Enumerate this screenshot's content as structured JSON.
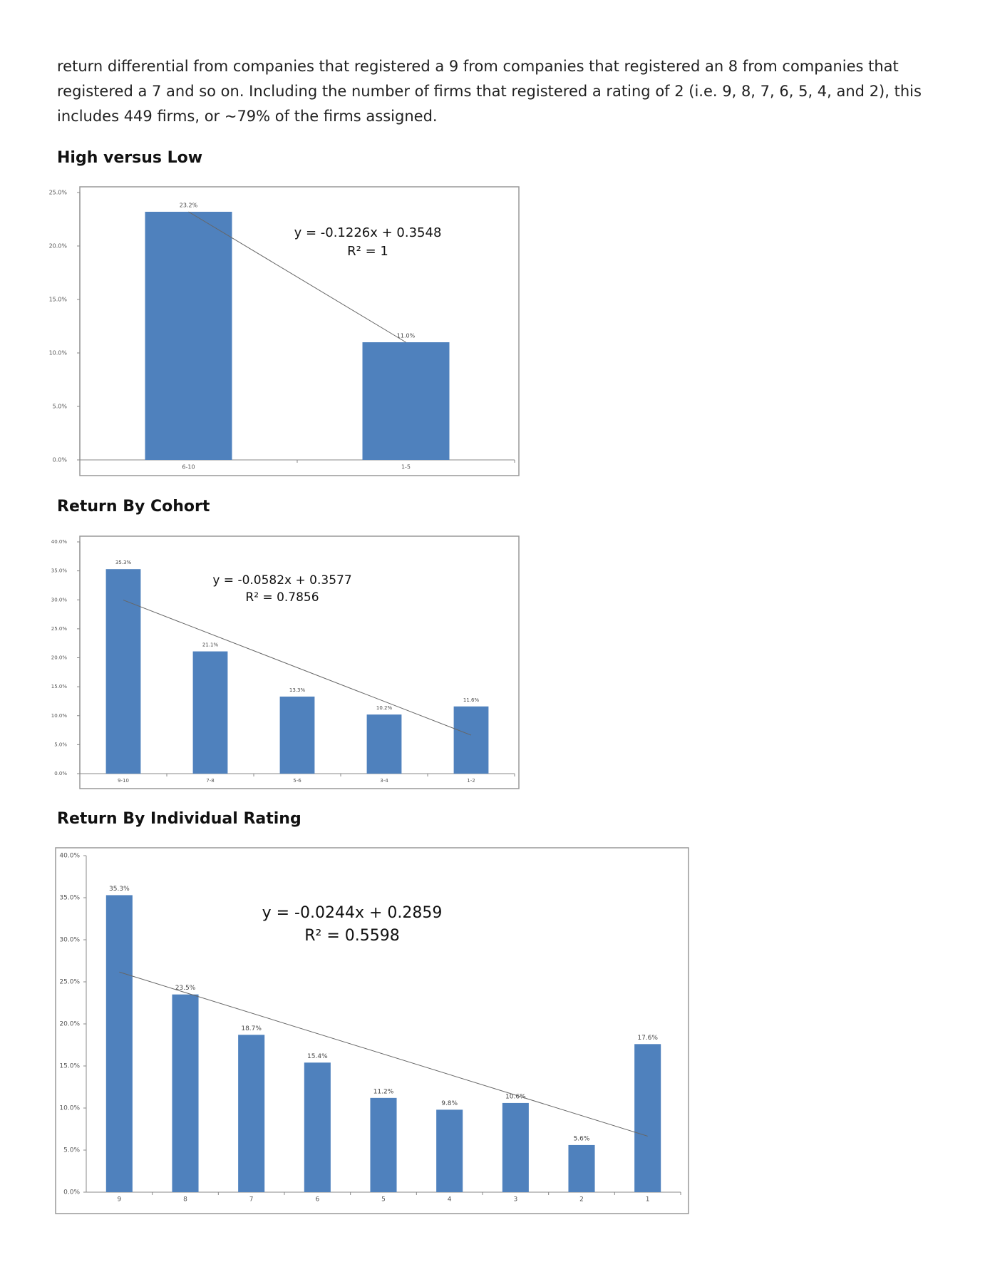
{
  "paragraph": [
    "return differential from companies that registered a 9 from companies that registered an 8 from companies that",
    "registered a 7 and so on. Including the number of firms that registered a rating of 2 (i.e. 9, 8, 7, 6, 5, 4, and 2), this",
    "includes 449 firms, or ~79% of the firms assigned."
  ],
  "chart_data": [
    {
      "type": "bar",
      "title": "High versus Low",
      "categories": [
        "6-10",
        "1-5"
      ],
      "values": [
        23.2,
        11.0
      ],
      "value_labels": [
        "23.2%",
        "11.0%"
      ],
      "color": "#4f81bd",
      "ylim": [
        0,
        25
      ],
      "yticks": [
        {
          "value": 0,
          "label": "0.0%"
        },
        {
          "value": 5,
          "label": "5.0%"
        },
        {
          "value": 10,
          "label": "10.0%"
        },
        {
          "value": 15,
          "label": "15.0%"
        },
        {
          "value": 20,
          "label": "20.0%"
        },
        {
          "value": 25,
          "label": "25.0%"
        }
      ],
      "trendline": "linear",
      "annotations": [
        "y = -0.1226x + 0.3548",
        "R² = 1"
      ]
    },
    {
      "type": "bar",
      "title": "Return By Cohort",
      "categories": [
        "9-10",
        "7-8",
        "5-6",
        "3-4",
        "1-2"
      ],
      "values": [
        35.3,
        21.1,
        13.3,
        10.2,
        11.6
      ],
      "value_labels": [
        "35.3%",
        "21.1%",
        "13.3%",
        "10.2%",
        "11.6%"
      ],
      "color": "#4f81bd",
      "ylim": [
        0,
        40
      ],
      "yticks": [
        {
          "value": 0,
          "label": "0.0%"
        },
        {
          "value": 5,
          "label": "5.0%"
        },
        {
          "value": 10,
          "label": "10.0%"
        },
        {
          "value": 15,
          "label": "15.0%"
        },
        {
          "value": 20,
          "label": "20.0%"
        },
        {
          "value": 25,
          "label": "25.0%"
        },
        {
          "value": 30,
          "label": "30.0%"
        },
        {
          "value": 35,
          "label": "35.0%"
        },
        {
          "value": 40,
          "label": "40.0%"
        }
      ],
      "trendline": "linear",
      "annotations": [
        "y = -0.0582x + 0.3577",
        "R² = 0.7856"
      ]
    },
    {
      "type": "bar",
      "title": "Return By Individual Rating",
      "categories": [
        "9",
        "8",
        "7",
        "6",
        "5",
        "4",
        "3",
        "2",
        "1"
      ],
      "values": [
        35.3,
        23.5,
        18.7,
        15.4,
        11.2,
        9.8,
        10.6,
        5.6,
        17.6
      ],
      "value_labels": [
        "35.3%",
        "23.5%",
        "18.7%",
        "15.4%",
        "11.2%",
        "9.8%",
        "10.6%",
        "5.6%",
        "17.6%"
      ],
      "color": "#4f81bd",
      "ylim": [
        0,
        40
      ],
      "yticks": [
        {
          "value": 0,
          "label": "0.0%"
        },
        {
          "value": 5,
          "label": "5.0%"
        },
        {
          "value": 10,
          "label": "10.0%"
        },
        {
          "value": 15,
          "label": "15.0%"
        },
        {
          "value": 20,
          "label": "20.0%"
        },
        {
          "value": 25,
          "label": "25.0%"
        },
        {
          "value": 30,
          "label": "30.0%"
        },
        {
          "value": 35,
          "label": "35.0%"
        },
        {
          "value": 40,
          "label": "40.0%"
        }
      ],
      "trendline": "linear",
      "annotations": [
        "y = -0.0244x + 0.2859",
        "R² = 0.5598"
      ]
    }
  ]
}
